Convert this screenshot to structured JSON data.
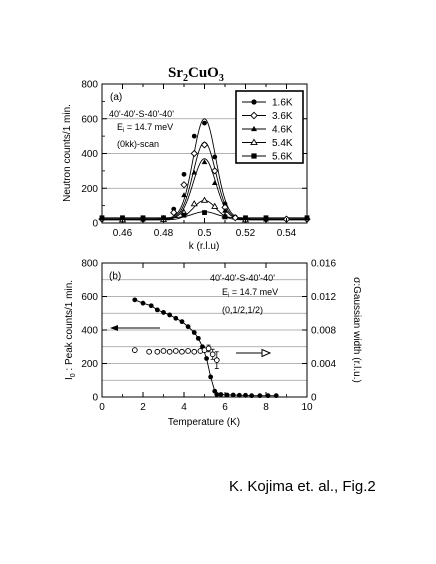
{
  "figure": {
    "title_main": "Sr",
    "title_sub1": "2",
    "title_mid": "CuO",
    "title_sub2": "3",
    "caption": "K. Kojima et. al., Fig.2"
  },
  "chart_data": [
    {
      "type": "line",
      "panel_label": "(a)",
      "xlabel": "k  (r.l.u)",
      "ylabel": "Neutron counts/1 min.",
      "xlim": [
        0.45,
        0.55
      ],
      "ylim": [
        0,
        800
      ],
      "xticks": [
        0.46,
        0.47,
        0.48,
        0.49,
        0.5,
        0.51,
        0.52,
        0.53,
        0.54
      ],
      "xtick_labels": [
        "0.46",
        "",
        "0.48",
        "",
        "0.5",
        "",
        "0.52",
        "",
        "0.54"
      ],
      "yticks": [
        0,
        200,
        400,
        600,
        800
      ],
      "grid": true,
      "legend_position": "top-right",
      "annotations": [
        "40'-40'-S-40'-40'",
        "E",
        "i",
        " = 14.7 meV",
        "(0kk)-scan"
      ],
      "series": [
        {
          "name": "1.6K",
          "marker": "filled-circle",
          "x": [
            0.45,
            0.46,
            0.47,
            0.48,
            0.485,
            0.49,
            0.495,
            0.5,
            0.505,
            0.51,
            0.515,
            0.52,
            0.53,
            0.54,
            0.55
          ],
          "y": [
            25,
            25,
            25,
            30,
            80,
            280,
            500,
            575,
            380,
            110,
            35,
            25,
            25,
            25,
            25
          ],
          "fit": {
            "peak": 600,
            "center": 0.5,
            "sigma": 0.0055,
            "baseline": 25
          }
        },
        {
          "name": "3.6K",
          "marker": "open-diamond",
          "x": [
            0.45,
            0.46,
            0.47,
            0.48,
            0.485,
            0.49,
            0.495,
            0.5,
            0.505,
            0.51,
            0.515,
            0.52,
            0.53,
            0.54,
            0.55
          ],
          "y": [
            22,
            22,
            22,
            25,
            60,
            220,
            400,
            450,
            300,
            90,
            30,
            22,
            22,
            22,
            22
          ],
          "fit": {
            "peak": 465,
            "center": 0.5,
            "sigma": 0.0055,
            "baseline": 22
          }
        },
        {
          "name": "4.6K",
          "marker": "filled-triangle",
          "x": [
            0.46,
            0.47,
            0.48,
            0.49,
            0.495,
            0.5,
            0.505,
            0.51,
            0.52,
            0.53
          ],
          "y": [
            20,
            20,
            22,
            160,
            290,
            350,
            230,
            70,
            20,
            20
          ],
          "fit": {
            "peak": 370,
            "center": 0.5,
            "sigma": 0.0055,
            "baseline": 20
          }
        },
        {
          "name": "5.4K",
          "marker": "open-triangle",
          "x": [
            0.46,
            0.48,
            0.49,
            0.495,
            0.5,
            0.505,
            0.51,
            0.52
          ],
          "y": [
            18,
            20,
            60,
            110,
            130,
            95,
            40,
            18
          ],
          "fit": {
            "peak": 130,
            "center": 0.5,
            "sigma": 0.0055,
            "baseline": 18
          }
        },
        {
          "name": "5.6K",
          "marker": "filled-square",
          "x": [
            0.45,
            0.46,
            0.47,
            0.48,
            0.49,
            0.5,
            0.51,
            0.52,
            0.53,
            0.55
          ],
          "y": [
            30,
            30,
            30,
            30,
            45,
            60,
            35,
            30,
            30,
            30
          ],
          "fit": {
            "peak": 65,
            "center": 0.5,
            "sigma": 0.0055,
            "baseline": 30
          }
        }
      ]
    },
    {
      "type": "scatter",
      "panel_label": "(b)",
      "xlabel": "Temperature  (K)",
      "ylabel_left_main": "I",
      "ylabel_left_sub": "0",
      "ylabel_left_rest": " : Peak counts/1 min.",
      "ylabel_right": "σ:Gaussian width  (r.l.u.)",
      "xlim": [
        0,
        10
      ],
      "ylim": [
        0,
        800
      ],
      "ylim_right": [
        0,
        0.016
      ],
      "xticks": [
        0,
        2,
        4,
        6,
        8,
        10
      ],
      "yticks": [
        0,
        200,
        400,
        600,
        800
      ],
      "yticks_right": [
        0,
        0.004,
        0.008,
        0.012,
        0.016
      ],
      "ytick_right_labels": [
        "0",
        "0.004",
        "0.008",
        "0.012",
        "0.016"
      ],
      "grid": true,
      "annotations": [
        "40'-40'-S-40'-40'",
        "E",
        "i",
        " = 14.7 meV",
        "(0,1/2,1/2)"
      ],
      "series": [
        {
          "name": "",
          "axis": "left",
          "marker": "filled-circle",
          "x": [
            1.6,
            2.0,
            2.4,
            2.7,
            3.0,
            3.3,
            3.6,
            3.9,
            4.2,
            4.5,
            4.7,
            4.9,
            5.1,
            5.3,
            5.5,
            5.6,
            5.8,
            6.1,
            6.4,
            6.7,
            7.0,
            7.3,
            7.7,
            8.1,
            8.5
          ],
          "y": [
            580,
            560,
            545,
            520,
            505,
            490,
            470,
            450,
            420,
            385,
            350,
            300,
            230,
            120,
            35,
            15,
            15,
            12,
            12,
            10,
            10,
            8,
            8,
            8,
            8
          ]
        },
        {
          "name": "",
          "axis": "right",
          "marker": "open-circle",
          "x": [
            1.6,
            2.3,
            2.7,
            3.0,
            3.3,
            3.6,
            3.9,
            4.2,
            4.5,
            4.8,
            5.0,
            5.2,
            5.4,
            5.6
          ],
          "y": [
            0.0056,
            0.0054,
            0.0054,
            0.0055,
            0.0054,
            0.0055,
            0.0054,
            0.0055,
            0.0054,
            0.0055,
            0.0056,
            0.0058,
            0.0051,
            0.0044
          ],
          "error": [
            0,
            0,
            0,
            0,
            0,
            0,
            0,
            0,
            0,
            0,
            0,
            0.0004,
            0.0006,
            0.001
          ]
        }
      ]
    }
  ]
}
